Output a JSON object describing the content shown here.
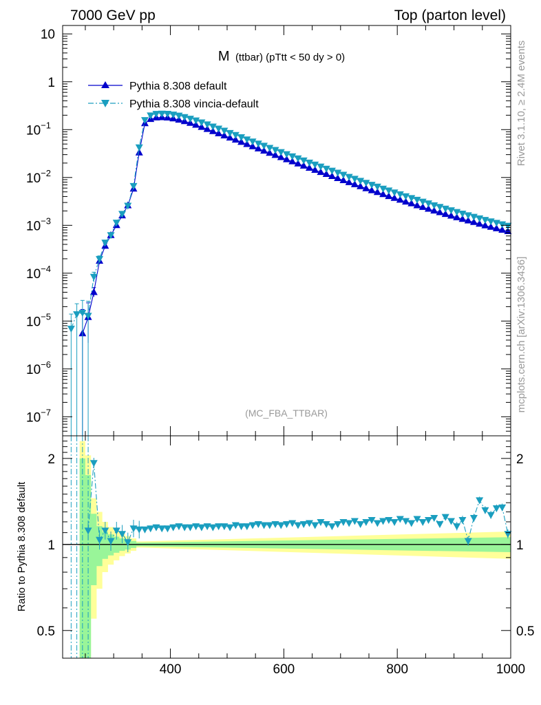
{
  "header": {
    "left": "7000 GeV pp",
    "right": "Top (parton level)"
  },
  "side_labels": {
    "rivet": "Rivet 3.1.10, ≥ 2.4M events",
    "mcplots": "mcplots.cern.ch [arXiv:1306.3436]"
  },
  "colors": {
    "default": "#0000cc",
    "vincia": "#1a9ebf",
    "band_inner": "#99f599",
    "band_outer": "#ffff99"
  },
  "chart_data": [
    {
      "type": "line",
      "title_main": "M",
      "title_sub": "(ttbar) (pTtt < 50 dy > 0)",
      "watermark": "(MC_FBA_TTBAR)",
      "yscale": "log",
      "xlim": [
        210,
        1000
      ],
      "ylim": [
        4e-08,
        15
      ],
      "legend_position": "top-left",
      "y_ticks": [
        {
          "v": 10,
          "label": "10"
        },
        {
          "v": 1,
          "label": "1"
        },
        {
          "v": 0.1,
          "label": "10",
          "exp": "−1"
        },
        {
          "v": 0.01,
          "label": "10",
          "exp": "−2"
        },
        {
          "v": 0.001,
          "label": "10",
          "exp": "−3"
        },
        {
          "v": 0.0001,
          "label": "10",
          "exp": "−4"
        },
        {
          "v": 1e-05,
          "label": "10",
          "exp": "−5"
        },
        {
          "v": 1e-06,
          "label": "10",
          "exp": "−6"
        },
        {
          "v": 1e-07,
          "label": "10",
          "exp": "−7"
        }
      ],
      "series": [
        {
          "name": "Pythia 8.308 default",
          "marker": "triangle-up",
          "linestyle": "solid",
          "x": [
            245,
            255,
            265,
            275,
            285,
            295,
            305,
            315,
            325,
            335,
            345,
            355,
            365,
            375,
            385,
            395,
            405,
            415,
            425,
            435,
            445,
            455,
            465,
            475,
            485,
            495,
            505,
            515,
            525,
            535,
            545,
            555,
            565,
            575,
            585,
            595,
            605,
            615,
            625,
            635,
            645,
            655,
            665,
            675,
            685,
            695,
            705,
            715,
            725,
            735,
            745,
            755,
            765,
            775,
            785,
            795,
            805,
            815,
            825,
            835,
            845,
            855,
            865,
            875,
            885,
            895,
            905,
            915,
            925,
            935,
            945,
            955,
            965,
            975,
            985,
            995
          ],
          "y": [
            5.5e-06,
            1.2e-05,
            4e-05,
            0.00018,
            0.00037,
            0.00062,
            0.001,
            0.0016,
            0.0026,
            0.0058,
            0.033,
            0.135,
            0.165,
            0.178,
            0.18,
            0.177,
            0.17,
            0.16,
            0.149,
            0.137,
            0.125,
            0.113,
            0.102,
            0.092,
            0.083,
            0.075,
            0.0675,
            0.061,
            0.055,
            0.0495,
            0.0445,
            0.04,
            0.036,
            0.0325,
            0.0293,
            0.0264,
            0.0238,
            0.0215,
            0.0194,
            0.0175,
            0.0158,
            0.0143,
            0.0129,
            0.0117,
            0.0106,
            0.0096,
            0.0087,
            0.0079,
            0.00715,
            0.0065,
            0.0059,
            0.00535,
            0.0049,
            0.00445,
            0.00405,
            0.0037,
            0.0034,
            0.0031,
            0.00285,
            0.0026,
            0.0024,
            0.0022,
            0.00202,
            0.00186,
            0.00171,
            0.00158,
            0.00146,
            0.00135,
            0.00125,
            0.00116,
            0.00107,
            0.00099,
            0.00092,
            0.00086,
            0.0008,
            0.00075
          ],
          "yerr_low": [
            5.5e-06,
            8.5e-06,
            8e-06,
            2.5e-05,
            4.5e-05
          ],
          "yerr_high": [
            1.2e-05,
            1.2e-05,
            1e-05,
            2.5e-05,
            4.5e-05
          ]
        },
        {
          "name": "Pythia 8.308 vincia-default",
          "marker": "triangle-down",
          "linestyle": "dashdot",
          "x": [
            225,
            235,
            245,
            255,
            265,
            275,
            285,
            295,
            305,
            315,
            325,
            335,
            345,
            355,
            365,
            375,
            385,
            395,
            405,
            415,
            425,
            435,
            445,
            455,
            465,
            475,
            485,
            495,
            505,
            515,
            525,
            535,
            545,
            555,
            565,
            575,
            585,
            595,
            605,
            615,
            625,
            635,
            645,
            655,
            665,
            675,
            685,
            695,
            705,
            715,
            725,
            735,
            745,
            755,
            765,
            775,
            785,
            795,
            805,
            815,
            825,
            835,
            845,
            855,
            865,
            875,
            885,
            895,
            905,
            915,
            925,
            935,
            945,
            955,
            965,
            975,
            985,
            995
          ],
          "y": [
            7e-06,
            1.4e-05,
            1.5e-05,
            1.3e-05,
            8.5e-05,
            0.0002,
            0.00044,
            0.00063,
            0.00115,
            0.00175,
            0.0026,
            0.0067,
            0.043,
            0.16,
            0.2,
            0.215,
            0.218,
            0.216,
            0.208,
            0.198,
            0.185,
            0.171,
            0.157,
            0.143,
            0.13,
            0.117,
            0.106,
            0.096,
            0.086,
            0.078,
            0.07,
            0.063,
            0.057,
            0.0515,
            0.0465,
            0.042,
            0.038,
            0.0343,
            0.031,
            0.028,
            0.0253,
            0.0229,
            0.0207,
            0.0188,
            0.0171,
            0.0154,
            0.014,
            0.0127,
            0.0115,
            0.0104,
            0.0095,
            0.0086,
            0.0078,
            0.0071,
            0.0065,
            0.0059,
            0.0054,
            0.0049,
            0.0045,
            0.0041,
            0.00375,
            0.00345,
            0.00315,
            0.0029,
            0.00265,
            0.00245,
            0.00225,
            0.00208,
            0.00192,
            0.00177,
            0.00164,
            0.00152,
            0.00141,
            0.00131,
            0.00122,
            0.00114,
            0.00106,
            0.00099
          ],
          "yerr_low": [
            7e-06,
            1.4e-05,
            1.5e-05,
            1.3e-05,
            2e-05,
            3e-05,
            5e-05
          ],
          "yerr_high": [
            7e-06,
            9e-06,
            1.2e-05,
            1.3e-05,
            2e-05,
            3e-05,
            5e-05
          ]
        }
      ]
    },
    {
      "type": "line",
      "ylabel": "Ratio to Pythia 8.308 default",
      "yscale": "log",
      "xlim": [
        210,
        1000
      ],
      "ylim": [
        0.4,
        2.4
      ],
      "x_ticks": [
        400,
        600,
        800,
        1000
      ],
      "y_ticks": [
        {
          "v": 0.5,
          "label": "0.5"
        },
        {
          "v": 1,
          "label": "1"
        },
        {
          "v": 2,
          "label": "2"
        }
      ],
      "reference": 1,
      "band_x": [
        245,
        255,
        265,
        275,
        285,
        295,
        305,
        315,
        325,
        335,
        345,
        1000
      ],
      "band_inner_halfwidth": [
        1.0,
        0.75,
        0.28,
        0.16,
        0.11,
        0.085,
        0.065,
        0.05,
        0.04,
        0.028,
        0.015,
        0.06
      ],
      "band_outer_halfwidth": [
        1.3,
        1.05,
        0.45,
        0.3,
        0.2,
        0.15,
        0.12,
        0.09,
        0.07,
        0.05,
        0.025,
        0.11
      ],
      "series": [
        {
          "name": "Pythia 8.308 vincia-default",
          "x": [
            225,
            235,
            245,
            255,
            265,
            275,
            285,
            295,
            305,
            315,
            325,
            335,
            345,
            355,
            365,
            375,
            385,
            395,
            405,
            415,
            425,
            435,
            445,
            455,
            465,
            475,
            485,
            495,
            505,
            515,
            525,
            535,
            545,
            555,
            565,
            575,
            585,
            595,
            605,
            615,
            625,
            635,
            645,
            655,
            665,
            675,
            685,
            695,
            705,
            715,
            725,
            735,
            745,
            755,
            765,
            775,
            785,
            795,
            805,
            815,
            825,
            835,
            845,
            855,
            865,
            875,
            885,
            895,
            905,
            915,
            925,
            935,
            945,
            955,
            965,
            975,
            985,
            995
          ],
          "y": [
            null,
            null,
            null,
            1.12,
            1.93,
            1.04,
            1.12,
            1.03,
            1.12,
            1.09,
            1.02,
            1.14,
            1.13,
            1.13,
            1.14,
            1.15,
            1.14,
            1.14,
            1.15,
            1.16,
            1.15,
            1.15,
            1.16,
            1.15,
            1.16,
            1.15,
            1.16,
            1.16,
            1.15,
            1.17,
            1.16,
            1.16,
            1.17,
            1.18,
            1.17,
            1.17,
            1.18,
            1.17,
            1.18,
            1.19,
            1.17,
            1.18,
            1.19,
            1.17,
            1.2,
            1.18,
            1.16,
            1.18,
            1.2,
            1.19,
            1.21,
            1.18,
            1.2,
            1.22,
            1.19,
            1.21,
            1.22,
            1.2,
            1.23,
            1.21,
            1.19,
            1.23,
            1.2,
            1.22,
            1.24,
            1.18,
            1.25,
            1.21,
            1.16,
            1.22,
            1.03,
            1.24,
            1.43,
            1.32,
            1.27,
            1.34,
            1.35,
            1.09
          ]
        }
      ]
    }
  ]
}
